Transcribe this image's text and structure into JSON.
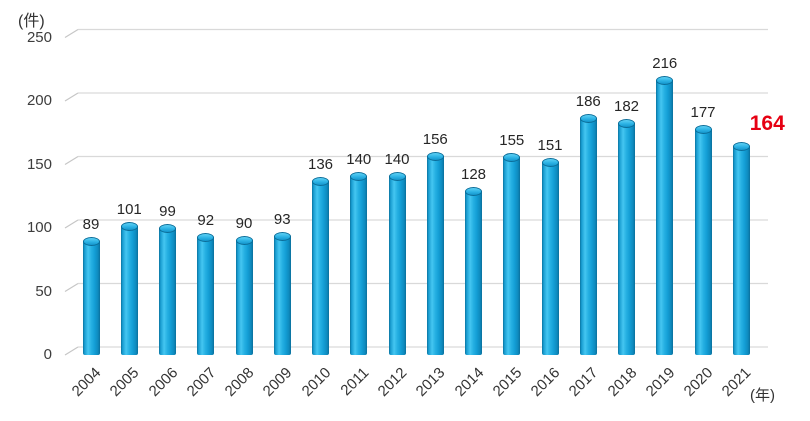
{
  "chart_data": {
    "type": "bar",
    "style": "3d-cylinder",
    "title": "",
    "unit_y": "(件)",
    "unit_x": "(年)",
    "categories": [
      "2004",
      "2005",
      "2006",
      "2007",
      "2008",
      "2009",
      "2010",
      "2011",
      "2012",
      "2013",
      "2014",
      "2015",
      "2016",
      "2017",
      "2018",
      "2019",
      "2020",
      "2021"
    ],
    "values": [
      89,
      101,
      99,
      92,
      90,
      93,
      136,
      140,
      140,
      156,
      128,
      155,
      151,
      186,
      182,
      216,
      177,
      164
    ],
    "ylim": [
      0,
      250
    ],
    "yticks": [
      0,
      50,
      100,
      150,
      200,
      250
    ],
    "grid": "horizontal",
    "legend": "none",
    "value_labels_shown": true,
    "highlight": {
      "index": 17,
      "category": "2021",
      "value": 164,
      "color": "#e60012"
    },
    "colors": {
      "bar_fill": "#1ba7de",
      "bar_edge": "#0a6f9d",
      "gridline": "#d9d9d9",
      "axis_elbow": "#c6c6c6",
      "label_text": "#262626",
      "axis_text": "#3d3d3d"
    }
  }
}
